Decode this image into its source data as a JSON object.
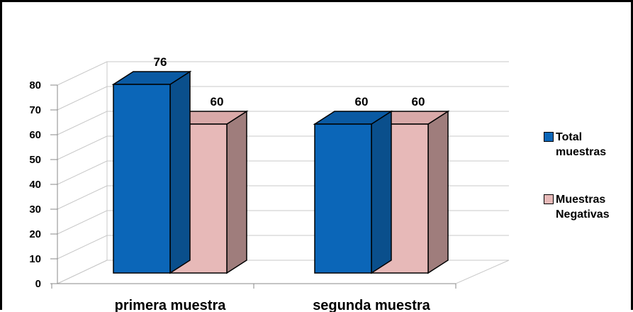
{
  "chart_data": {
    "type": "bar",
    "categories": [
      "primera muestra",
      "segunda muestra"
    ],
    "series": [
      {
        "name": "Total muestras",
        "values": [
          76,
          60
        ],
        "color": "#0b66b8",
        "side_color": "#0a4f8c",
        "top_color": "#0a5aa3"
      },
      {
        "name": "Muestras Negativas",
        "values": [
          60,
          60
        ],
        "color": "#e7b9b8",
        "side_color": "#9f7d7c",
        "top_color": "#d9a9a8"
      }
    ],
    "data_labels": [
      [
        "76",
        "60"
      ],
      [
        "60",
        "60"
      ]
    ],
    "ylim": [
      0,
      80
    ],
    "yticks": [
      0,
      10,
      20,
      30,
      40,
      50,
      60,
      70,
      80
    ],
    "grid": true,
    "legend_position": "right",
    "style": "3d-column"
  },
  "legend": {
    "items": [
      {
        "lines": [
          "Total",
          "muestras"
        ]
      },
      {
        "lines": [
          "Muestras",
          "Negativas"
        ]
      }
    ]
  }
}
